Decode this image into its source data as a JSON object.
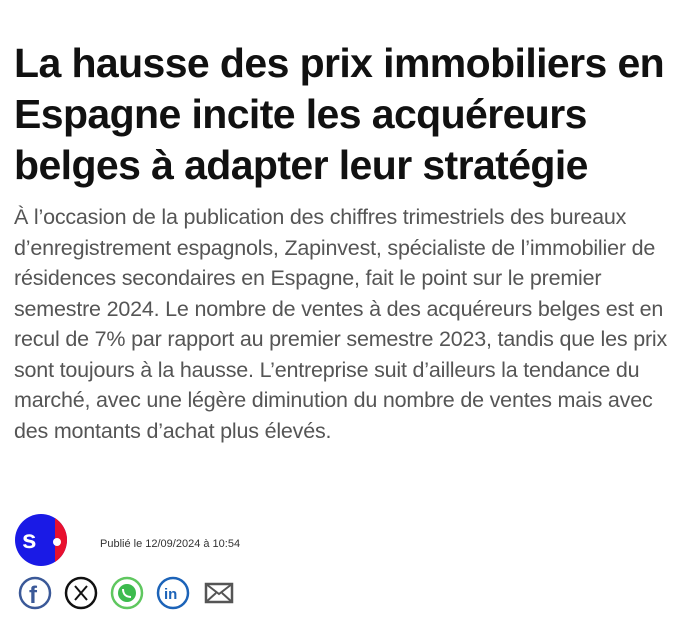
{
  "article": {
    "title": "La hausse des prix immobiliers en Espagne incite les acquéreurs belges à adapter leur stratégie",
    "lead": "À l’occasion de la publication des chiffres trimestriels des bureaux d’enregistrement espagnols, Zapinvest, spécialiste de l’immobilier de résidences secondaires en Espagne, fait le point sur le premier semestre 2024. Le nombre de ventes à des acquéreurs belges est en recul de 7% par rapport au premier semestre 2023, tandis que les prix sont toujours à la hausse. L’entreprise suit d’ailleurs la tendance du marché, avec une légère diminution du nombre de ventes mais avec des montants d’achat plus élevés.",
    "published": "Publié le 12/09/2024 à 10:54"
  },
  "share": [
    "facebook-icon",
    "x-icon",
    "whatsapp-icon",
    "linkedin-icon",
    "mail-icon"
  ],
  "colors": {
    "logo_blue": "#1a1ae6",
    "logo_red": "#e8102e"
  }
}
